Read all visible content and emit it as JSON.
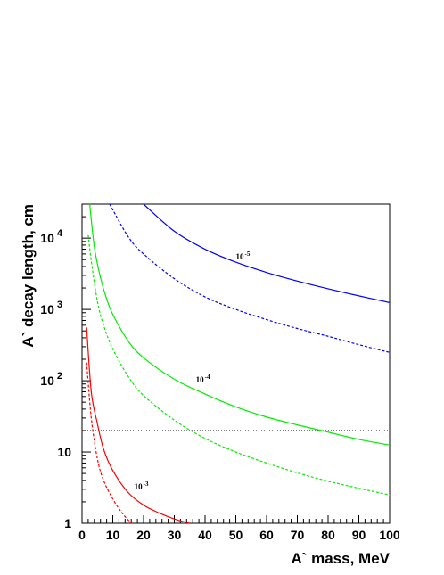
{
  "chart_data": {
    "type": "line",
    "title": "",
    "xlabel": "A` mass, MeV",
    "ylabel": "A` decay length, cm",
    "xlim": [
      0,
      100
    ],
    "ylim": [
      1,
      30000
    ],
    "yscale": "log",
    "grid": false,
    "legend": "none",
    "x_ticks": [
      "0",
      "10",
      "20",
      "30",
      "40",
      "50",
      "60",
      "70",
      "80",
      "90",
      "100"
    ],
    "y_ticks": [
      {
        "base": "1",
        "exp": ""
      },
      {
        "base": "10",
        "exp": ""
      },
      {
        "base": "10",
        "exp": "2"
      },
      {
        "base": "10",
        "exp": "3"
      },
      {
        "base": "10",
        "exp": "4"
      }
    ],
    "reference_line": {
      "y": 20,
      "style": "dotted",
      "color": "#000000"
    },
    "annotations": [
      {
        "text": "10",
        "sup": "-5",
        "x": 50,
        "y": 5000
      },
      {
        "text": "10",
        "sup": "-4",
        "x": 37,
        "y": 95
      },
      {
        "text": "10",
        "sup": "-3",
        "x": 17,
        "y": 3.0
      }
    ],
    "series": [
      {
        "color": "#0000ff",
        "style": "solid",
        "x": [
          20,
          30,
          40,
          50,
          60,
          70,
          80,
          90,
          100
        ],
        "y": [
          30000,
          12500,
          7000,
          4600,
          3300,
          2500,
          1950,
          1550,
          1250
        ]
      },
      {
        "color": "#0000ff",
        "style": "dashed",
        "x": [
          9,
          15,
          20,
          30,
          40,
          50,
          60,
          70,
          80,
          90,
          100
        ],
        "y": [
          30000,
          10500,
          6000,
          2700,
          1500,
          1000,
          720,
          540,
          420,
          320,
          250
        ]
      },
      {
        "color": "#00ee00",
        "style": "solid",
        "x": [
          2.5,
          4,
          6,
          8,
          10,
          15,
          20,
          30,
          40,
          50,
          60,
          70,
          80,
          90,
          100
        ],
        "y": [
          30000,
          7500,
          2800,
          1400,
          850,
          360,
          210,
          105,
          65,
          43,
          31,
          24,
          19,
          15,
          12.5
        ]
      },
      {
        "color": "#00ee00",
        "style": "dashed",
        "x": [
          2,
          3,
          5,
          7,
          10,
          15,
          20,
          30,
          40,
          50,
          60,
          70,
          80,
          90,
          100
        ],
        "y": [
          11000,
          4800,
          1300,
          600,
          280,
          115,
          62,
          28,
          15.5,
          10,
          7,
          5.1,
          3.9,
          3.1,
          2.5
        ]
      },
      {
        "color": "#ff0000",
        "style": "solid",
        "x": [
          1.5,
          3,
          5,
          7,
          10,
          15,
          20,
          25,
          30,
          35
        ],
        "y": [
          560,
          70,
          25,
          11,
          5.5,
          2.7,
          1.8,
          1.4,
          1.15,
          1.0
        ]
      },
      {
        "color": "#ff0000",
        "style": "dashed",
        "x": [
          1.5,
          3,
          5,
          7,
          10,
          13,
          16
        ],
        "y": [
          180,
          30,
          8,
          4,
          2.2,
          1.4,
          1.0
        ]
      }
    ]
  }
}
